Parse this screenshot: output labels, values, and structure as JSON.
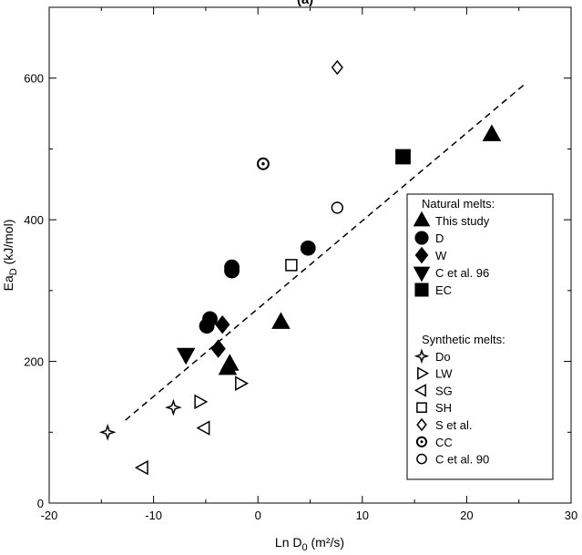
{
  "chart_data": {
    "type": "scatter",
    "title": "(a)",
    "x_label": [
      "Ln D",
      "0",
      " (m²/s)"
    ],
    "y_label": [
      "Ea",
      "D",
      " (kJ/mol)"
    ],
    "xlim": [
      -20,
      30
    ],
    "ylim": [
      0,
      700
    ],
    "xticks": [
      -20,
      -10,
      0,
      10,
      20,
      30
    ],
    "yticks": [
      0,
      200,
      400,
      600
    ],
    "x_minor_ticks": [
      -15,
      -5,
      5,
      15,
      25
    ],
    "y_minor_ticks": [
      100,
      300,
      500,
      700
    ],
    "fit_line": {
      "x": [
        -12.7,
        25.6
      ],
      "y": [
        117,
        592
      ],
      "style": "dashed"
    },
    "legend_groups": [
      "Natural melts:",
      "Synthetic melts:"
    ],
    "series": [
      {
        "name": "This study",
        "group": 0,
        "marker": "triangle-up",
        "filled": true,
        "x": [
          22.4,
          2.2,
          -2.7,
          -2.9
        ],
        "values": [
          520,
          255,
          196,
          190
        ]
      },
      {
        "name": "D",
        "group": 0,
        "marker": "circle",
        "filled": true,
        "x": [
          4.8,
          -2.5,
          -2.5,
          -4.6,
          -4.9
        ],
        "values": [
          360,
          333,
          328,
          260,
          250
        ]
      },
      {
        "name": "W",
        "group": 0,
        "marker": "diamond",
        "filled": true,
        "x": [
          -3.4,
          -3.8
        ],
        "values": [
          252,
          218
        ]
      },
      {
        "name": "C et al. 96",
        "group": 0,
        "marker": "triangle-down",
        "filled": true,
        "x": [
          -6.9
        ],
        "values": [
          210
        ]
      },
      {
        "name": "EC",
        "group": 0,
        "marker": "square",
        "filled": true,
        "x": [
          13.9
        ],
        "values": [
          489
        ]
      },
      {
        "name": "Do",
        "group": 1,
        "marker": "star",
        "filled": false,
        "x": [
          -14.4,
          -8.1
        ],
        "values": [
          100,
          135
        ]
      },
      {
        "name": "LW",
        "group": 1,
        "marker": "triangle-right",
        "filled": false,
        "x": [
          -5.6,
          -1.7
        ],
        "values": [
          143,
          169
        ]
      },
      {
        "name": "SG",
        "group": 1,
        "marker": "triangle-left",
        "filled": false,
        "x": [
          -11.0,
          -5.1
        ],
        "values": [
          50,
          106
        ]
      },
      {
        "name": "SH",
        "group": 1,
        "marker": "square",
        "filled": false,
        "x": [
          3.2
        ],
        "values": [
          336
        ]
      },
      {
        "name": "S et al.",
        "group": 1,
        "marker": "diamond",
        "filled": false,
        "x": [
          7.6
        ],
        "values": [
          615
        ]
      },
      {
        "name": "CC",
        "group": 1,
        "marker": "circle-dot",
        "filled": false,
        "x": [
          0.5
        ],
        "values": [
          479
        ]
      },
      {
        "name": "C et al. 90",
        "group": 1,
        "marker": "circle",
        "filled": false,
        "x": [
          7.6
        ],
        "values": [
          417
        ]
      }
    ]
  }
}
